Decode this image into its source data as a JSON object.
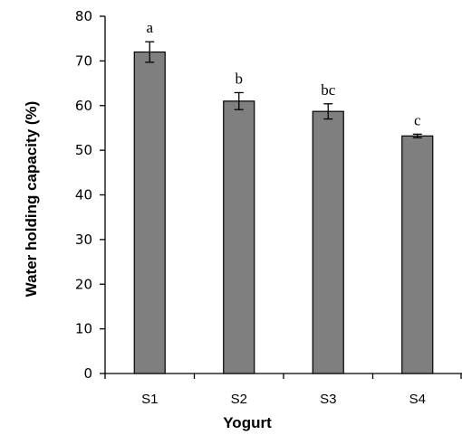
{
  "chart_data": {
    "type": "bar",
    "title": "",
    "xlabel": "Yogurt",
    "ylabel": "Water holding capacity (%)",
    "ylim": [
      0,
      80
    ],
    "yticks": [
      0,
      10,
      20,
      30,
      40,
      50,
      60,
      70,
      80
    ],
    "grid": false,
    "categories": [
      "S1",
      "S2",
      "S3",
      "S4"
    ],
    "values": [
      72.0,
      61.0,
      58.7,
      53.2
    ],
    "errors": [
      2.3,
      1.9,
      1.7,
      0.4
    ],
    "significance_labels": [
      "a",
      "b",
      "bc",
      "c"
    ],
    "bar_color": "#7f7f7f",
    "edge_color": "#000000"
  }
}
